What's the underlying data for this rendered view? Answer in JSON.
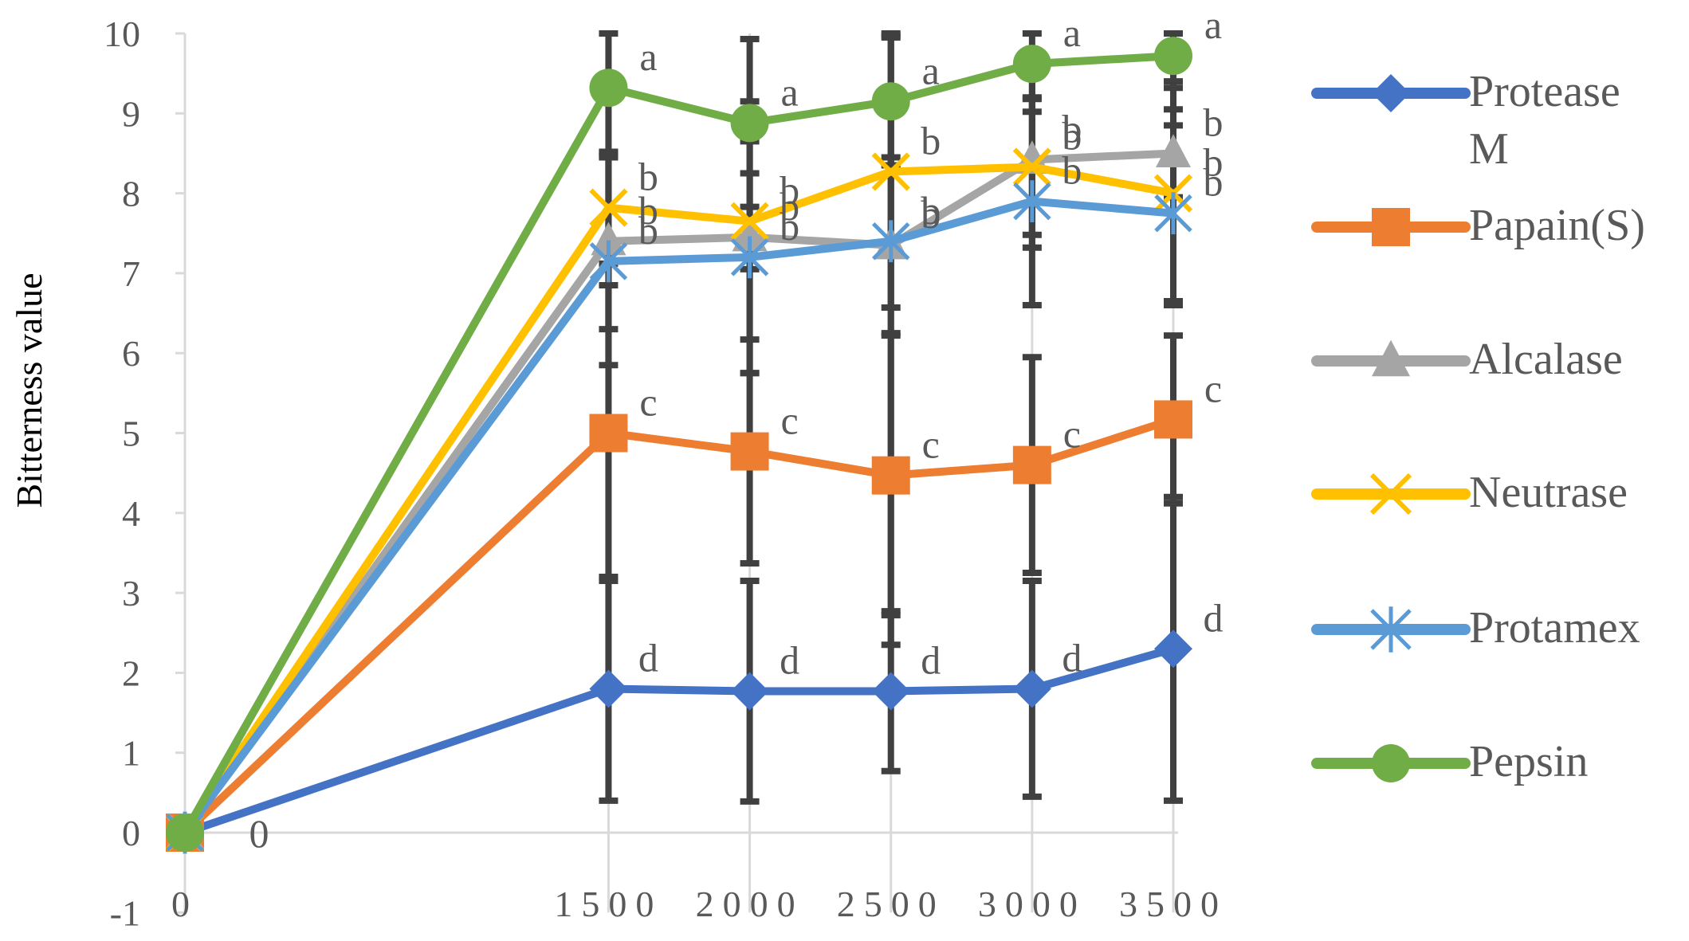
{
  "chart_data": {
    "type": "line",
    "title": "",
    "xlabel": "",
    "ylabel": "Bitterness value",
    "x": [
      0,
      1500,
      2000,
      2500,
      3000,
      3500
    ],
    "x_tick_labels": [
      "0",
      "1500",
      "2000",
      "2500",
      "3000",
      "3500"
    ],
    "ylim": [
      -1,
      10
    ],
    "y_ticks": [
      -1,
      0,
      1,
      2,
      3,
      4,
      5,
      6,
      7,
      8,
      9,
      10
    ],
    "y_tick_labels": [
      "-1",
      "0",
      "1",
      "2",
      "3",
      "4",
      "5",
      "6",
      "7",
      "8",
      "9",
      "10"
    ],
    "grid": "vertical gridlines",
    "legend_position": "right",
    "zero_label": "0",
    "series": [
      {
        "name": "Protease M",
        "color": "#4472c4",
        "marker": "diamond",
        "values": [
          0,
          1.8,
          1.77,
          1.77,
          1.8,
          2.3
        ],
        "errors": [
          0,
          1.4,
          1.38,
          1.0,
          1.35,
          1.9
        ],
        "labels": [
          "",
          "d",
          "d",
          "d",
          "d",
          "d"
        ]
      },
      {
        "name": "Papain(S)",
        "color": "#ed7d31",
        "marker": "square",
        "values": [
          0,
          5.0,
          4.77,
          4.47,
          4.6,
          5.17
        ],
        "errors": [
          0,
          1.85,
          1.4,
          1.75,
          1.35,
          1.05
        ],
        "labels": [
          "",
          "c",
          "c",
          "c",
          "c",
          "c"
        ]
      },
      {
        "name": "Alcalase",
        "color": "#a5a5a5",
        "marker": "triangle",
        "values": [
          0,
          7.4,
          7.45,
          7.35,
          8.42,
          8.5
        ],
        "errors": [
          0,
          1.1,
          1.7,
          1.1,
          1.1,
          0.55
        ],
        "labels": [
          "",
          "b",
          "b",
          "b",
          "b",
          "b"
        ]
      },
      {
        "name": "Neutrase",
        "color": "#ffc000",
        "marker": "x",
        "values": [
          0,
          7.82,
          7.65,
          8.27,
          8.33,
          8.0
        ],
        "errors": [
          0,
          0.7,
          0.6,
          1.7,
          0.85,
          1.4
        ],
        "labels": [
          "",
          "b",
          "b",
          "b",
          "b",
          "b"
        ]
      },
      {
        "name": "Protamex",
        "color": "#5b9bd5",
        "marker": "star",
        "values": [
          0,
          7.15,
          7.2,
          7.4,
          7.9,
          7.75
        ],
        "errors": [
          0,
          1.3,
          1.45,
          5.05,
          1.3,
          1.1
        ],
        "labels": [
          "",
          "b",
          "b",
          "b",
          "b",
          "b"
        ]
      },
      {
        "name": "Pepsin",
        "color": "#70ad47",
        "marker": "circle",
        "values": [
          0,
          9.32,
          8.88,
          9.15,
          9.62,
          9.72
        ],
        "errors": [
          0,
          0.85,
          1.05,
          0.8,
          0.6,
          0.4
        ],
        "labels": [
          "",
          "a",
          "a",
          "a",
          "a",
          "a"
        ]
      }
    ]
  }
}
